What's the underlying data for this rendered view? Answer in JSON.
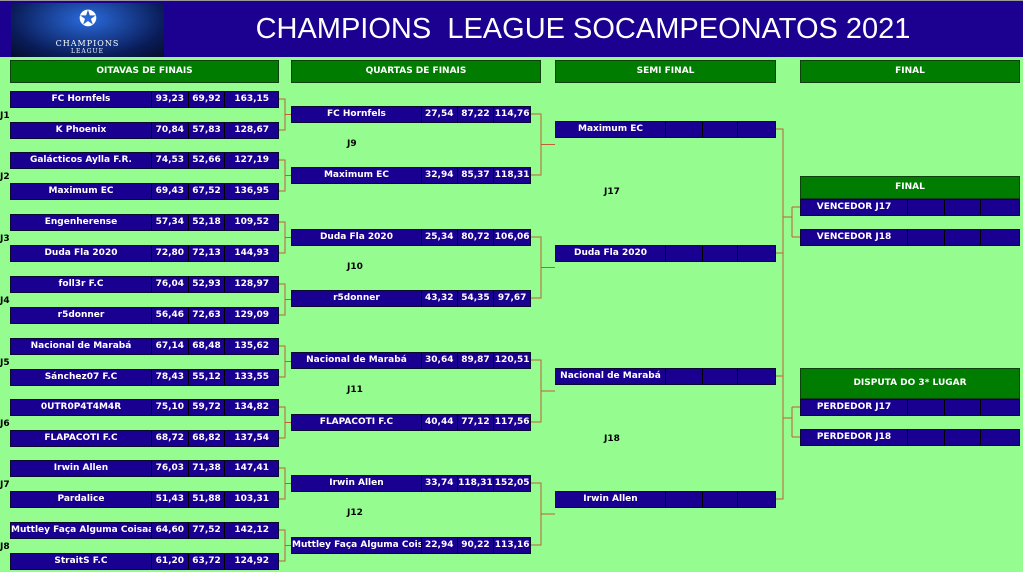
{
  "header": {
    "title": "CHAMPIONS  LEAGUE SOCAMPEONATOS 2021",
    "logo_text": "UEFA CHAMPIONS LEAGUE",
    "logo_line1": "CHAMPIONS",
    "logo_line2": "LEAGUE"
  },
  "columns": [
    "OITAVAS DE FINAIS",
    "QUARTAS DE FINAIS",
    "SEMI FINAL",
    "FINAL"
  ],
  "round_of_16": [
    {
      "label": "J1",
      "teams": [
        {
          "name": "FC Hornfels",
          "s1": "93,23",
          "s2": "69,92",
          "total": "163,15"
        },
        {
          "name": "K Phoenix",
          "s1": "70,84",
          "s2": "57,83",
          "total": "128,67"
        }
      ]
    },
    {
      "label": "J2",
      "teams": [
        {
          "name": "Galácticos Aylla F.R.",
          "s1": "74,53",
          "s2": "52,66",
          "total": "127,19"
        },
        {
          "name": "Maximum EC",
          "s1": "69,43",
          "s2": "67,52",
          "total": "136,95"
        }
      ]
    },
    {
      "label": "J3",
      "teams": [
        {
          "name": "Engenherense",
          "s1": "57,34",
          "s2": "52,18",
          "total": "109,52"
        },
        {
          "name": "Duda Fla 2020",
          "s1": "72,80",
          "s2": "72,13",
          "total": "144,93"
        }
      ]
    },
    {
      "label": "J4",
      "teams": [
        {
          "name": "foll3r F.C",
          "s1": "76,04",
          "s2": "52,93",
          "total": "128,97"
        },
        {
          "name": "r5donner",
          "s1": "56,46",
          "s2": "72,63",
          "total": "129,09"
        }
      ]
    },
    {
      "label": "J5",
      "teams": [
        {
          "name": "Nacional de Marabá",
          "s1": "67,14",
          "s2": "68,48",
          "total": "135,62"
        },
        {
          "name": "Sánchez07 F.C",
          "s1": "78,43",
          "s2": "55,12",
          "total": "133,55"
        }
      ]
    },
    {
      "label": "J6",
      "teams": [
        {
          "name": "0UTR0P4T4M4R",
          "s1": "75,10",
          "s2": "59,72",
          "total": "134,82"
        },
        {
          "name": "FLAPACOTI F.C",
          "s1": "68,72",
          "s2": "68,82",
          "total": "137,54"
        }
      ]
    },
    {
      "label": "J7",
      "teams": [
        {
          "name": "Irwin Allen",
          "s1": "76,03",
          "s2": "71,38",
          "total": "147,41"
        },
        {
          "name": "Pardalice",
          "s1": "51,43",
          "s2": "51,88",
          "total": "103,31"
        }
      ]
    },
    {
      "label": "J8",
      "teams": [
        {
          "name": "Muttley Faça Alguma Coisaaa",
          "s1": "64,60",
          "s2": "77,52",
          "total": "142,12"
        },
        {
          "name": "StraitS F.C",
          "s1": "61,20",
          "s2": "63,72",
          "total": "124,92"
        }
      ]
    }
  ],
  "quarter_finals": [
    {
      "label": "J9",
      "teams": [
        {
          "name": "FC Hornfels",
          "s1": "27,54",
          "s2": "87,22",
          "total": "114,76"
        },
        {
          "name": "Maximum EC",
          "s1": "32,94",
          "s2": "85,37",
          "total": "118,31"
        }
      ]
    },
    {
      "label": "J10",
      "teams": [
        {
          "name": "Duda Fla 2020",
          "s1": "25,34",
          "s2": "80,72",
          "total": "106,06"
        },
        {
          "name": "r5donner",
          "s1": "43,32",
          "s2": "54,35",
          "total": "97,67"
        }
      ]
    },
    {
      "label": "J11",
      "teams": [
        {
          "name": "Nacional de Marabá",
          "s1": "30,64",
          "s2": "89,87",
          "total": "120,51"
        },
        {
          "name": "FLAPACOTI F.C",
          "s1": "40,44",
          "s2": "77,12",
          "total": "117,56"
        }
      ]
    },
    {
      "label": "J12",
      "teams": [
        {
          "name": "Muttley Faça Alguma Coisaaa",
          "s1": "22,94",
          "s2": "90,22",
          "total": "113,16"
        }
      ],
      "top": {
        "name": "Irwin Allen",
        "s1": "33,74",
        "s2": "118,31",
        "total": "152,05"
      }
    }
  ],
  "semi_finals": [
    {
      "label": "J17",
      "teams": [
        {
          "name": "Maximum EC",
          "s1": "",
          "s2": "",
          "total": ""
        },
        {
          "name": "Duda Fla 2020",
          "s1": "",
          "s2": "",
          "total": ""
        }
      ]
    },
    {
      "label": "J18",
      "teams": [
        {
          "name": "Nacional de Marabá",
          "s1": "",
          "s2": "",
          "total": ""
        },
        {
          "name": "Irwin Allen",
          "s1": "",
          "s2": "",
          "total": ""
        }
      ]
    }
  ],
  "final": {
    "title": "FINAL",
    "teams": [
      {
        "name": "VENCEDOR J17",
        "s1": "",
        "s2": "",
        "total": ""
      },
      {
        "name": "VENCEDOR J18",
        "s1": "",
        "s2": "",
        "total": ""
      }
    ]
  },
  "third_place": {
    "title": "DISPUTA DO 3* LUGAR",
    "teams": [
      {
        "name": "PERDEDOR J17",
        "s1": "",
        "s2": "",
        "total": ""
      },
      {
        "name": "PERDEDOR J18",
        "s1": "",
        "s2": "",
        "total": ""
      }
    ]
  },
  "colors": {
    "background": "#95fd8f",
    "header": "#1c0090",
    "row": "#1a0090",
    "section": "#007c00",
    "bracket": "#c0603a"
  }
}
